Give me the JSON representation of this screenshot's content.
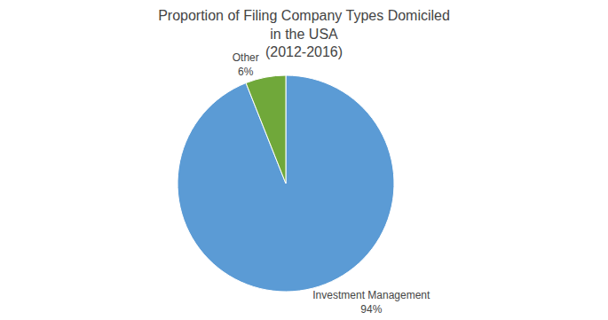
{
  "chart_data": {
    "type": "pie",
    "title": "Proportion of Filing Company Types Domiciled\nin the USA\n(2012-2016)",
    "categories": [
      "Investment Management",
      "Other"
    ],
    "values": [
      94,
      6
    ],
    "value_labels": [
      "94%",
      "6%"
    ],
    "colors": [
      "#5B9BD5",
      "#70A83A"
    ],
    "data_labels": true
  }
}
